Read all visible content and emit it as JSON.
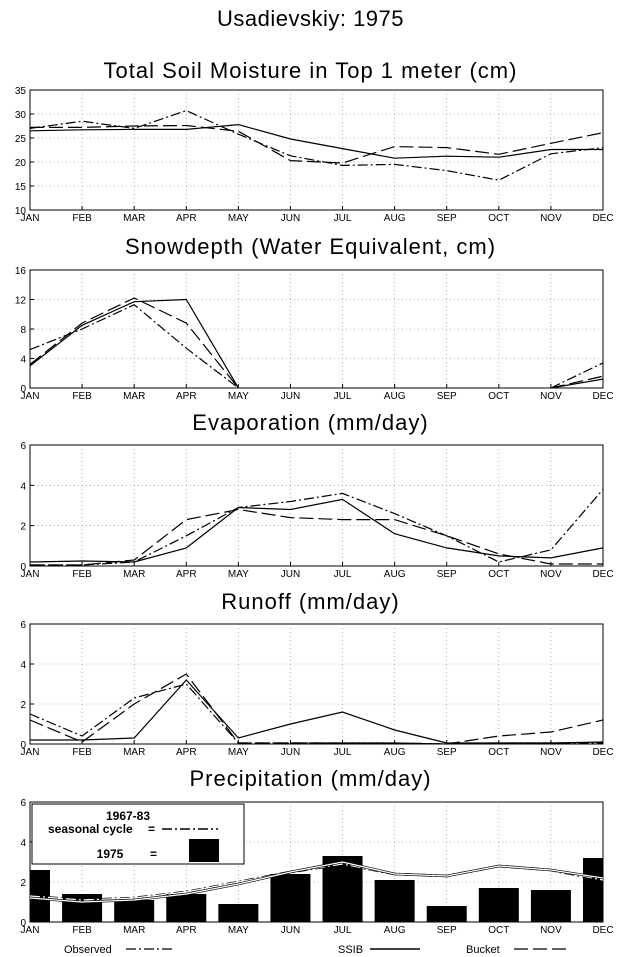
{
  "page_title": "Usadievskiy: 1975",
  "months": [
    "JAN",
    "FEB",
    "MAR",
    "APR",
    "MAY",
    "JUN",
    "JUL",
    "AUG",
    "SEP",
    "OCT",
    "NOV",
    "DEC"
  ],
  "bottom_legend": {
    "observed": "Observed",
    "ssib": "SSIB",
    "bucket": "Bucket"
  },
  "precip_legend": {
    "line1": "1967-83",
    "line2": "seasonal cycle",
    "year": "1975",
    "eq": "="
  },
  "chart_data": [
    {
      "type": "line",
      "title": "Total Soil Moisture in Top 1 meter (cm)",
      "ylim": [
        10,
        35
      ],
      "yticks": [
        10,
        15,
        20,
        25,
        30,
        35
      ],
      "grid": true,
      "series": [
        {
          "name": "SSIB",
          "style": "solid",
          "values": [
            26.5,
            26.7,
            26.8,
            26.8,
            27.8,
            24.8,
            22.8,
            20.8,
            21.2,
            21.0,
            22.6,
            22.6
          ]
        },
        {
          "name": "Bucket",
          "style": "dash",
          "values": [
            27.2,
            27.2,
            27.5,
            27.6,
            26.4,
            20.3,
            19.8,
            23.2,
            23.0,
            21.6,
            23.9,
            26.1
          ]
        },
        {
          "name": "Observed",
          "style": "dashdot",
          "values": [
            27.0,
            28.5,
            27.0,
            30.7,
            25.8,
            21.3,
            19.3,
            19.5,
            18.2,
            16.2,
            21.7,
            23.0
          ]
        }
      ]
    },
    {
      "type": "line",
      "title": "Snowdepth (Water Equivalent, cm)",
      "ylim": [
        0,
        16
      ],
      "yticks": [
        0,
        4,
        8,
        12,
        16
      ],
      "grid": true,
      "series": [
        {
          "name": "SSIB",
          "style": "solid",
          "values": [
            3.0,
            8.5,
            11.7,
            12.0,
            0.0,
            null,
            null,
            null,
            null,
            null,
            0.0,
            1.2
          ]
        },
        {
          "name": "Bucket",
          "style": "dash",
          "values": [
            3.2,
            8.8,
            12.2,
            8.8,
            0.0,
            null,
            null,
            null,
            null,
            null,
            0.0,
            1.6
          ]
        },
        {
          "name": "Observed",
          "style": "dashdot",
          "values": [
            5.2,
            8.0,
            11.3,
            5.4,
            0.0,
            null,
            null,
            null,
            null,
            null,
            0.0,
            3.4
          ]
        }
      ]
    },
    {
      "type": "line",
      "title": "Evaporation (mm/day)",
      "ylim": [
        0,
        6
      ],
      "yticks": [
        0,
        2,
        4,
        6
      ],
      "grid": true,
      "series": [
        {
          "name": "SSIB",
          "style": "solid",
          "values": [
            0.2,
            0.25,
            0.2,
            0.9,
            2.9,
            2.8,
            3.3,
            1.6,
            0.9,
            0.5,
            0.4,
            0.9
          ]
        },
        {
          "name": "Bucket",
          "style": "dash",
          "values": [
            0.05,
            0.05,
            0.3,
            2.3,
            2.8,
            2.4,
            2.3,
            2.3,
            1.5,
            0.6,
            0.1,
            0.1
          ]
        },
        {
          "name": "Observed",
          "style": "dashdot",
          "values": [
            0.05,
            0.05,
            0.2,
            1.5,
            2.9,
            3.2,
            3.6,
            2.6,
            1.5,
            0.2,
            0.8,
            3.8
          ]
        }
      ]
    },
    {
      "type": "line",
      "title": "Runoff (mm/day)",
      "ylim": [
        0,
        6
      ],
      "yticks": [
        0,
        2,
        4,
        6
      ],
      "grid": true,
      "series": [
        {
          "name": "SSIB",
          "style": "solid",
          "values": [
            0.2,
            0.2,
            0.3,
            3.2,
            0.3,
            1.0,
            1.6,
            0.7,
            0.05,
            0.05,
            0.05,
            0.1
          ]
        },
        {
          "name": "Bucket",
          "style": "dash",
          "values": [
            1.2,
            0.1,
            2.0,
            3.5,
            0.05,
            0.05,
            0.05,
            0.05,
            0.0,
            0.4,
            0.6,
            1.2
          ]
        },
        {
          "name": "Observed",
          "style": "dashdot",
          "values": [
            1.5,
            0.4,
            2.3,
            3.0,
            0.05,
            0.05,
            0.05,
            0.05,
            0.0,
            0.05,
            0.05,
            0.05
          ]
        }
      ]
    },
    {
      "type": "bar",
      "title": "Precipitation (mm/day)",
      "ylim": [
        0,
        6
      ],
      "yticks": [
        0,
        2,
        4,
        6
      ],
      "grid": true,
      "categories": [
        "JAN",
        "FEB",
        "MAR",
        "APR",
        "MAY",
        "JUN",
        "JUL",
        "AUG",
        "SEP",
        "OCT",
        "NOV",
        "DEC"
      ],
      "series": [
        {
          "name": "1975",
          "style": "bar",
          "values": [
            2.6,
            1.4,
            1.1,
            1.4,
            0.9,
            2.4,
            3.3,
            2.1,
            0.8,
            1.7,
            1.6,
            3.2
          ]
        },
        {
          "name": "1967-83 seasonal cycle",
          "style": "dashdot",
          "values": [
            1.3,
            1.1,
            1.2,
            1.5,
            2.0,
            2.5,
            2.9,
            2.4,
            2.3,
            2.8,
            2.6,
            2.1
          ]
        },
        {
          "name": "SSIB",
          "style": "solid",
          "values": [
            1.2,
            1.0,
            1.1,
            1.4,
            1.9,
            2.5,
            3.0,
            2.4,
            2.3,
            2.8,
            2.6,
            2.2
          ]
        }
      ]
    }
  ]
}
